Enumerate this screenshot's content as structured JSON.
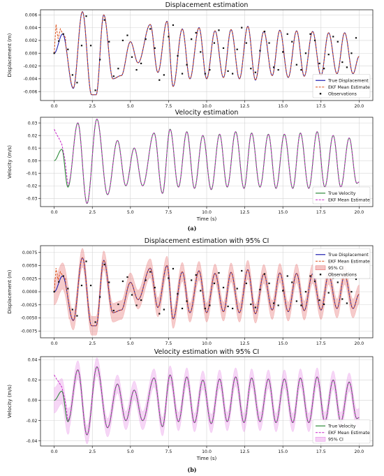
{
  "panel_labels": [
    "(a)",
    "(b)"
  ],
  "colors": {
    "true_disp": "#1f1fb0",
    "ekf_disp": "#d94f1a",
    "obs": "#111111",
    "ci_disp": "#e46a6a",
    "true_vel": "#2e8b3a",
    "ekf_vel": "#c724c7",
    "ci_vel": "#e58ae5"
  },
  "chart_data": [
    {
      "type": "line",
      "title": "Displacement estimation",
      "xlabel": "Time (s)",
      "ylabel": "Displacement (m)",
      "xlim": [
        -0.9,
        20.9
      ],
      "ylim": [
        -0.0074,
        0.0068
      ],
      "xticks": [
        0,
        2.5,
        5,
        7.5,
        10,
        12.5,
        15,
        17.5,
        20
      ],
      "xtick_labels": [
        "0.0",
        "2.5",
        "5.0",
        "7.5",
        "10.0",
        "12.5",
        "15.0",
        "17.5",
        "20.0"
      ],
      "yticks": [
        -0.006,
        -0.004,
        -0.002,
        0,
        0.002,
        0.004,
        0.006
      ],
      "ytick_labels": [
        "-0.006",
        "-0.004",
        "-0.002",
        "0.000",
        "0.002",
        "0.004",
        "0.006"
      ],
      "grid": true,
      "show_xlabel": false,
      "legend": {
        "position": "bottom-right",
        "entries": [
          {
            "label": "True Displacement",
            "kind": "line",
            "color": "#1f1fb0"
          },
          {
            "label": "EKF Mean Estimate",
            "kind": "dashed",
            "color": "#d94f1a"
          },
          {
            "label": "Observations",
            "kind": "marker",
            "color": "#111111"
          }
        ]
      },
      "series": [
        {
          "name": "True Displacement",
          "kind": "truth_disp",
          "color": "#1f1fb0"
        },
        {
          "name": "EKF Mean Estimate",
          "kind": "ekf_disp",
          "color": "#d94f1a"
        },
        {
          "name": "Observations",
          "kind": "obs",
          "color": "#111111"
        }
      ],
      "observations": {
        "t": [
          0,
          0.3,
          0.6,
          0.9,
          1.2,
          1.5,
          1.8,
          2.1,
          2.4,
          2.7,
          3.0,
          3.3,
          3.6,
          3.9,
          4.2,
          4.5,
          4.8,
          5.1,
          5.4,
          5.7,
          6.0,
          6.3,
          6.6,
          6.9,
          7.2,
          7.5,
          7.8,
          8.1,
          8.4,
          8.7,
          9.0,
          9.3,
          9.6,
          9.9,
          10.2,
          10.5,
          10.8,
          11.1,
          11.4,
          11.7,
          12.0,
          12.3,
          12.6,
          12.9,
          13.2,
          13.5,
          13.8,
          14.1,
          14.4,
          14.7,
          15.0,
          15.3,
          15.6,
          15.9,
          16.2,
          16.5,
          16.8,
          17.1,
          17.4,
          17.7,
          18.0,
          18.3,
          18.6,
          18.9,
          19.2,
          19.5,
          19.8
        ],
        "y": [
          0.0,
          0.0019,
          0.003,
          0.0006,
          -0.0034,
          -0.0046,
          0.0012,
          0.0058,
          0.0012,
          -0.0058,
          -0.001,
          0.0052,
          0.0018,
          -0.0036,
          -0.0024,
          0.002,
          0.0028,
          -0.0006,
          -0.0026,
          -0.0016,
          0.0022,
          0.0038,
          0.0008,
          -0.0042,
          -0.0034,
          0.0026,
          0.0044,
          -0.0004,
          -0.0032,
          -0.0018,
          0.0022,
          0.0032,
          0.0002,
          -0.0032,
          -0.0026,
          0.0016,
          0.0036,
          0.0008,
          -0.0028,
          -0.0032,
          0.0006,
          0.004,
          0.0016,
          -0.0024,
          -0.003,
          0.0004,
          0.0034,
          0.0016,
          -0.0022,
          -0.0026,
          0.0002,
          0.003,
          0.0018,
          -0.0018,
          -0.0026,
          0.0,
          0.003,
          0.002,
          -0.0016,
          -0.0024,
          -0.0002,
          0.0026,
          0.0018,
          -0.0014,
          -0.0022,
          0.0,
          0.0024
        ]
      }
    },
    {
      "type": "line",
      "title": "Velocity estimation",
      "xlabel": "Time (s)",
      "ylabel": "Velocity (m/s)",
      "xlim": [
        -0.9,
        20.9
      ],
      "ylim": [
        -0.0365,
        0.0345
      ],
      "xticks": [
        0,
        2.5,
        5,
        7.5,
        10,
        12.5,
        15,
        17.5,
        20
      ],
      "xtick_labels": [
        "0.0",
        "2.5",
        "5.0",
        "7.5",
        "10.0",
        "12.5",
        "15.0",
        "17.5",
        "20.0"
      ],
      "yticks": [
        -0.03,
        -0.02,
        -0.01,
        0,
        0.01,
        0.02,
        0.03
      ],
      "ytick_labels": [
        "-0.03",
        "-0.02",
        "-0.01",
        "0.00",
        "0.01",
        "0.02",
        "0.03"
      ],
      "grid": true,
      "show_xlabel": true,
      "legend": {
        "position": "bottom-right",
        "entries": [
          {
            "label": "True Velocity",
            "kind": "line",
            "color": "#2e8b3a"
          },
          {
            "label": "EKF Mean Estimate",
            "kind": "dashed",
            "color": "#c724c7"
          }
        ]
      },
      "series": [
        {
          "name": "True Velocity",
          "kind": "truth_vel",
          "color": "#2e8b3a"
        },
        {
          "name": "EKF Mean Estimate",
          "kind": "ekf_vel",
          "color": "#c724c7"
        }
      ]
    },
    {
      "type": "line",
      "title": "Displacement estimation with 95% CI",
      "xlabel": "Time (s)",
      "ylabel": "Displacement (m)",
      "xlim": [
        -0.9,
        20.9
      ],
      "ylim": [
        -0.0088,
        0.0088
      ],
      "xticks": [
        0,
        2.5,
        5,
        7.5,
        10,
        12.5,
        15,
        17.5,
        20
      ],
      "xtick_labels": [
        "0.0",
        "2.5",
        "5.0",
        "7.5",
        "10.0",
        "12.5",
        "15.0",
        "17.5",
        "20.0"
      ],
      "yticks": [
        -0.0075,
        -0.005,
        -0.0025,
        0,
        0.0025,
        0.005,
        0.0075
      ],
      "ytick_labels": [
        "-0.0075",
        "-0.0050",
        "-0.0025",
        "0.0000",
        "0.0025",
        "0.0050",
        "0.0075"
      ],
      "grid": true,
      "show_xlabel": false,
      "legend": {
        "position": "top-right",
        "entries": [
          {
            "label": "True Displacement",
            "kind": "line",
            "color": "#1f1fb0"
          },
          {
            "label": "EKF Mean Estimate",
            "kind": "dashed",
            "color": "#d94f1a"
          },
          {
            "label": "95% CI",
            "kind": "patch",
            "color": "#e46a6a"
          },
          {
            "label": "Observations",
            "kind": "marker",
            "color": "#111111"
          }
        ]
      },
      "series": [
        {
          "name": "95% CI",
          "kind": "ci_disp",
          "color": "#e46a6a"
        },
        {
          "name": "True Displacement",
          "kind": "truth_disp",
          "color": "#1f1fb0"
        },
        {
          "name": "EKF Mean Estimate",
          "kind": "ekf_disp",
          "color": "#d94f1a"
        },
        {
          "name": "Observations",
          "kind": "obs",
          "color": "#111111"
        }
      ],
      "observations": {
        "t": [
          0,
          0.3,
          0.6,
          0.9,
          1.2,
          1.5,
          1.8,
          2.1,
          2.4,
          2.7,
          3.0,
          3.3,
          3.6,
          3.9,
          4.2,
          4.5,
          4.8,
          5.1,
          5.4,
          5.7,
          6.0,
          6.3,
          6.6,
          6.9,
          7.2,
          7.5,
          7.8,
          8.1,
          8.4,
          8.7,
          9.0,
          9.3,
          9.6,
          9.9,
          10.2,
          10.5,
          10.8,
          11.1,
          11.4,
          11.7,
          12.0,
          12.3,
          12.6,
          12.9,
          13.2,
          13.5,
          13.8,
          14.1,
          14.4,
          14.7,
          15.0,
          15.3,
          15.6,
          15.9,
          16.2,
          16.5,
          16.8,
          17.1,
          17.4,
          17.7,
          18.0,
          18.3,
          18.6,
          18.9,
          19.2,
          19.5,
          19.8
        ],
        "y": [
          0.0,
          0.0019,
          0.003,
          0.0006,
          -0.0034,
          -0.0046,
          0.0012,
          0.0058,
          0.0012,
          -0.0058,
          -0.001,
          0.0052,
          0.0018,
          -0.0036,
          -0.0024,
          0.002,
          0.0028,
          -0.0006,
          -0.0026,
          -0.0016,
          0.0022,
          0.0038,
          0.0008,
          -0.0042,
          -0.0034,
          0.0026,
          0.0044,
          -0.0004,
          -0.0032,
          -0.0018,
          0.0022,
          0.0032,
          0.0002,
          -0.0032,
          -0.0026,
          0.0016,
          0.0036,
          0.0008,
          -0.0028,
          -0.0032,
          0.0006,
          0.004,
          0.0016,
          -0.0024,
          -0.003,
          0.0004,
          0.0034,
          0.0016,
          -0.0022,
          -0.0026,
          0.0002,
          0.003,
          0.0018,
          -0.0018,
          -0.0026,
          0.0,
          0.003,
          0.002,
          -0.0016,
          -0.0024,
          -0.0002,
          0.0026,
          0.0018,
          -0.0014,
          -0.0022,
          0.0,
          0.0024
        ]
      }
    },
    {
      "type": "line",
      "title": "Velocity estimation with 95% CI",
      "xlabel": "Time (s)",
      "ylabel": "Velocity (m/s)",
      "xlim": [
        -0.9,
        20.9
      ],
      "ylim": [
        -0.045,
        0.043
      ],
      "xticks": [
        0,
        2.5,
        5,
        7.5,
        10,
        12.5,
        15,
        17.5,
        20
      ],
      "xtick_labels": [
        "0.0",
        "2.5",
        "5.0",
        "7.5",
        "10.0",
        "12.5",
        "15.0",
        "17.5",
        "20.0"
      ],
      "yticks": [
        -0.04,
        -0.02,
        0,
        0.02,
        0.04
      ],
      "ytick_labels": [
        "-0.04",
        "-0.02",
        "0.00",
        "0.02",
        "0.04"
      ],
      "grid": true,
      "show_xlabel": true,
      "legend": {
        "position": "bottom-right",
        "entries": [
          {
            "label": "True Velocity",
            "kind": "line",
            "color": "#2e8b3a"
          },
          {
            "label": "EKF Mean Estimate",
            "kind": "dashed",
            "color": "#c724c7"
          },
          {
            "label": "95% CI",
            "kind": "patch",
            "color": "#e58ae5"
          }
        ]
      },
      "series": [
        {
          "name": "95% CI",
          "kind": "ci_vel",
          "color": "#e58ae5"
        },
        {
          "name": "True Velocity",
          "kind": "truth_vel",
          "color": "#2e8b3a"
        },
        {
          "name": "EKF Mean Estimate",
          "kind": "ekf_vel",
          "color": "#c724c7"
        }
      ]
    }
  ],
  "signal": {
    "disp_peaks": {
      "t": [
        0,
        0.55,
        1.25,
        1.85,
        2.45,
        2.75,
        3.25,
        3.85,
        4.4,
        5.0,
        5.5,
        6.3,
        6.8,
        7.4,
        7.8,
        8.4,
        8.9,
        9.5,
        10.0,
        10.55,
        11.1,
        11.6,
        12.15,
        12.7,
        13.2,
        13.75,
        14.3,
        14.8,
        15.35,
        15.9,
        16.4,
        16.95,
        17.5,
        18.0,
        18.55,
        19.05,
        19.6,
        20.0
      ],
      "y": [
        0,
        0.003,
        -0.0055,
        0.0065,
        -0.0065,
        -0.0065,
        0.006,
        -0.004,
        -0.0035,
        0.0018,
        -0.0015,
        0.0045,
        -0.003,
        0.005,
        -0.0052,
        0.0038,
        -0.004,
        0.004,
        -0.004,
        0.0035,
        -0.0038,
        0.0037,
        -0.004,
        0.0042,
        -0.0042,
        0.0034,
        -0.0035,
        0.0036,
        -0.0038,
        0.0035,
        -0.0036,
        0.0034,
        -0.0035,
        0.0032,
        -0.0032,
        0.0032,
        -0.0032,
        -0.0005
      ]
    },
    "vel_peaks": {
      "t": [
        0,
        0.5,
        0.9,
        1.55,
        2.15,
        2.8,
        3.5,
        4.15,
        4.7,
        5.25,
        5.8,
        6.55,
        7.1,
        7.6,
        8.15,
        8.7,
        9.2,
        9.75,
        10.3,
        10.85,
        11.35,
        11.9,
        12.45,
        12.95,
        13.5,
        14.05,
        14.55,
        15.1,
        15.65,
        16.15,
        16.7,
        17.25,
        17.75,
        18.3,
        18.8,
        19.35,
        19.85,
        20.0
      ],
      "y": [
        0,
        0.009,
        -0.021,
        0.03,
        -0.034,
        0.033,
        -0.027,
        0.016,
        -0.02,
        0.01,
        -0.02,
        0.022,
        -0.026,
        0.025,
        -0.021,
        0.023,
        -0.022,
        0.02,
        -0.023,
        0.021,
        -0.021,
        0.023,
        -0.022,
        0.022,
        -0.021,
        0.021,
        -0.022,
        0.021,
        -0.022,
        0.022,
        -0.022,
        0.023,
        -0.021,
        0.02,
        -0.021,
        0.018,
        -0.018,
        -0.017
      ]
    },
    "ekf_disp_start": {
      "t": [
        0,
        0.12,
        0.25,
        0.4,
        0.55,
        0.75
      ],
      "y": [
        0,
        0.0045,
        0.0022,
        0.0038,
        0.0031,
        0.0024
      ]
    },
    "ekf_vel_start": {
      "t": [
        0,
        0.15,
        0.3,
        0.5,
        0.7,
        0.9
      ],
      "y": [
        0.025,
        0.021,
        0.018,
        0.013,
        0.001,
        -0.02
      ]
    },
    "ci_disp_halfwidth": 0.0018,
    "ci_vel_halfwidth": 0.009
  }
}
